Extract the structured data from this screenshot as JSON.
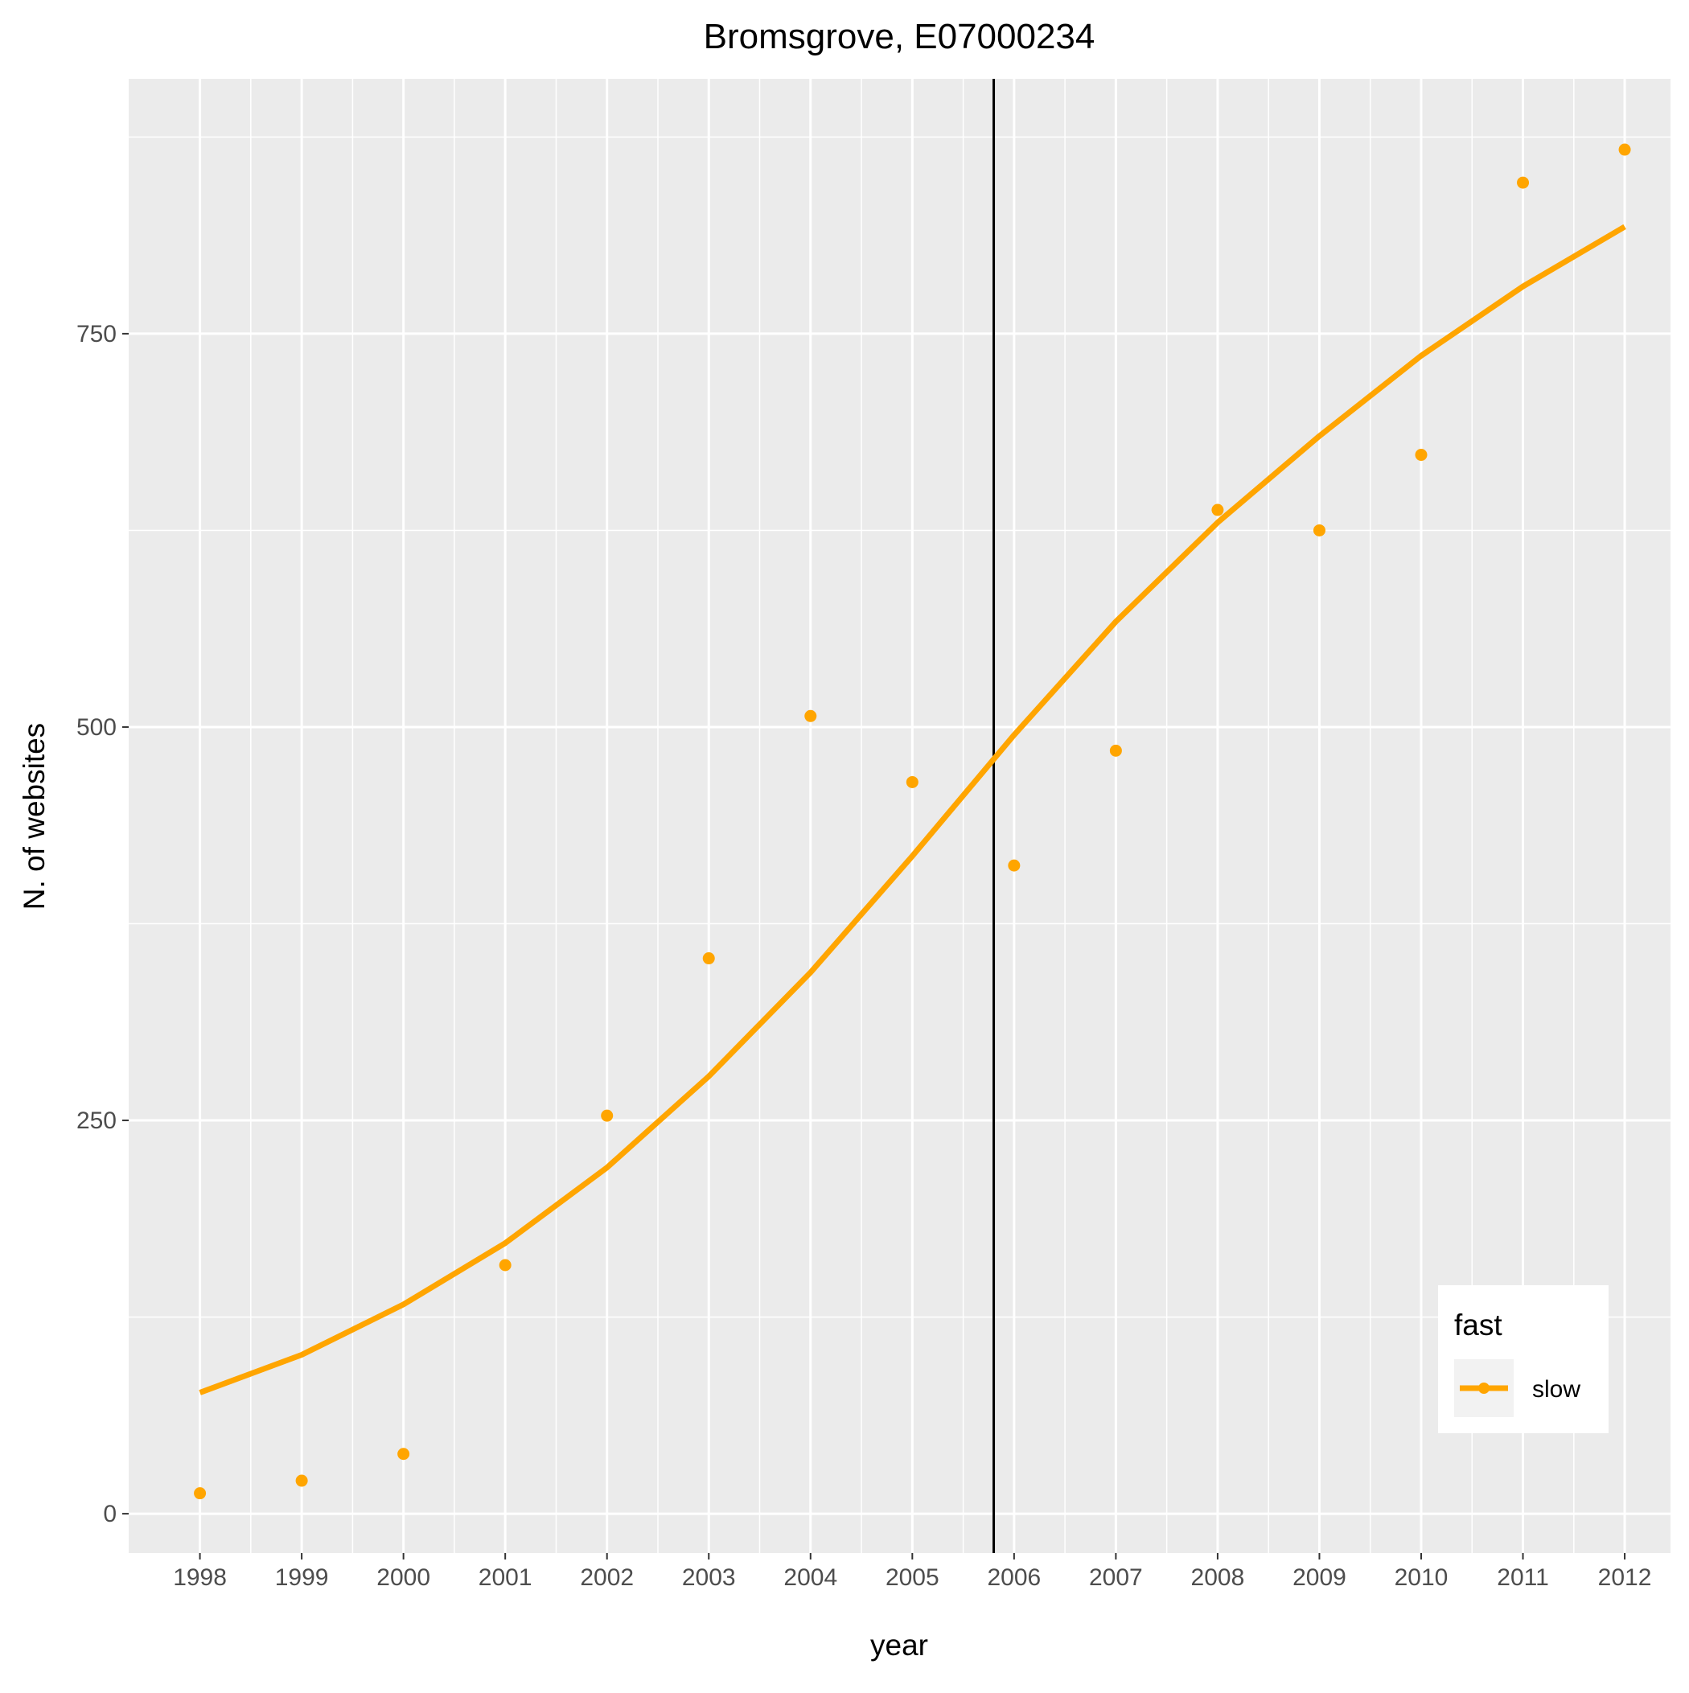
{
  "chart_data": {
    "type": "scatter",
    "title": "Bromsgrove, E07000234",
    "xlabel": "year",
    "ylabel": "N. of websites",
    "x": [
      1998,
      1999,
      2000,
      2001,
      2002,
      2003,
      2004,
      2005,
      2006,
      2007,
      2008,
      2009,
      2010,
      2011,
      2012
    ],
    "x_tick_labels": [
      "1998",
      "1999",
      "2000",
      "2001",
      "2002",
      "2003",
      "2004",
      "2005",
      "2006",
      "2007",
      "2008",
      "2009",
      "2010",
      "2011",
      "2012"
    ],
    "y_ticks": [
      0,
      250,
      500,
      750
    ],
    "y_tick_labels": [
      "0",
      "250",
      "500",
      "750"
    ],
    "xlim": [
      1997.3,
      2012.45
    ],
    "ylim": [
      -25,
      912
    ],
    "grid": true,
    "vline_x": 2005.8,
    "series": [
      {
        "name": "slow",
        "color": "#FFA500",
        "points": [
          13,
          21,
          38,
          158,
          253,
          353,
          507,
          465,
          412,
          485,
          638,
          625,
          673,
          846,
          867
        ],
        "trend": [
          77,
          101,
          133,
          172,
          220,
          278,
          344,
          418,
          495,
          567,
          630,
          685,
          736,
          780,
          818
        ]
      }
    ],
    "legend": {
      "title": "fast",
      "entries": [
        "slow"
      ],
      "position": "bottom-right"
    },
    "colors": {
      "panel": "#EBEBEB",
      "grid": "#FFFFFF",
      "vline": "#000000"
    }
  }
}
